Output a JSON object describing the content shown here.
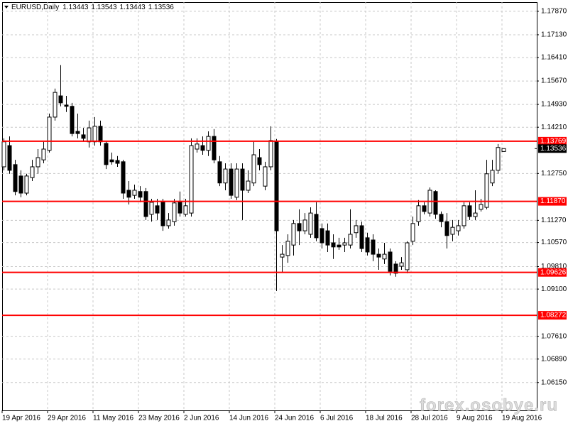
{
  "chart_data": {
    "type": "candlestick",
    "title": "EURUSD,Daily",
    "watermark": "forex.osobye.ru",
    "grid": true,
    "bull_color": "#ffffff",
    "bear_color": "#000000",
    "outline_color": "#000000",
    "categories": [
      "19 Apr 2016",
      null,
      null,
      null,
      null,
      null,
      null,
      null,
      "29 Apr 2016",
      null,
      null,
      null,
      null,
      null,
      null,
      null,
      "11 May 2016",
      null,
      null,
      null,
      null,
      null,
      null,
      null,
      "23 May 2016",
      null,
      null,
      null,
      null,
      null,
      null,
      null,
      "2 Jun 2016",
      null,
      null,
      null,
      null,
      null,
      null,
      null,
      "14 Jun 2016",
      null,
      null,
      null,
      null,
      null,
      null,
      null,
      "24 Jun 2016",
      null,
      null,
      null,
      null,
      null,
      null,
      null,
      "6 Jul 2016",
      null,
      null,
      null,
      null,
      null,
      null,
      null,
      "18 Jul 2016",
      null,
      null,
      null,
      null,
      null,
      null,
      null,
      "28 Jul 2016",
      null,
      null,
      null,
      null,
      null,
      null,
      null,
      "9 Aug 2016",
      null,
      null,
      null,
      null,
      null,
      null,
      null,
      "19 Aug 2016"
    ],
    "open": [
      1.1296,
      1.1363,
      1.1303,
      1.1267,
      1.1213,
      1.1262,
      1.1296,
      1.1318,
      1.1348,
      1.1453,
      1.152,
      1.1491,
      1.1487,
      1.1408,
      1.1397,
      1.1375,
      1.1375,
      1.1424,
      1.137,
      1.1318,
      1.1316,
      1.1312,
      1.1222,
      1.1206,
      1.1218,
      1.1218,
      1.1146,
      1.1173,
      1.1184,
      1.111,
      1.1123,
      1.1184,
      1.1146,
      1.115,
      1.1352,
      1.1363,
      1.1348,
      1.1392,
      1.1312,
      1.1245,
      1.1289,
      1.12,
      1.1289,
      1.1222,
      1.1245,
      1.1325,
      1.1235,
      1.1296,
      1.1375,
      1.1011,
      1.1016,
      1.1049,
      1.1117,
      1.1094,
      1.1083,
      1.1146,
      1.1101,
      1.1094,
      1.1056,
      1.1049,
      1.1049,
      1.1049,
      1.1088,
      1.111,
      1.1072,
      1.1065,
      1.102,
      1.1005,
      1.1027,
      1.0989,
      1.0982,
      1.0971,
      1.1061,
      1.1123,
      1.1173,
      1.115,
      1.1218,
      1.1146,
      1.1123,
      1.1083,
      1.1094,
      1.111,
      1.1173,
      1.1139,
      1.1162,
      1.1168,
      1.1245,
      1.1285,
      1.13443
    ],
    "high": [
      1.1386,
      1.1392,
      1.1318,
      1.1285,
      1.1274,
      1.1318,
      1.1352,
      1.1375,
      1.1464,
      1.1543,
      1.1617,
      1.152,
      1.1498,
      1.1464,
      1.1419,
      1.1442,
      1.1453,
      1.1442,
      1.1379,
      1.1341,
      1.133,
      1.1318,
      1.1251,
      1.124,
      1.1235,
      1.1229,
      1.1195,
      1.1195,
      1.1195,
      1.115,
      1.1195,
      1.1218,
      1.1195,
      1.1386,
      1.1386,
      1.1392,
      1.1408,
      1.1415,
      1.133,
      1.1307,
      1.1307,
      1.1307,
      1.1307,
      1.1285,
      1.1375,
      1.1352,
      1.1312,
      1.1424,
      1.1384,
      1.1049,
      1.1083,
      1.1128,
      1.1162,
      1.115,
      1.1168,
      1.1184,
      1.1117,
      1.1117,
      1.1083,
      1.1072,
      1.1072,
      1.1162,
      1.1128,
      1.1123,
      1.1088,
      1.1083,
      1.1038,
      1.1056,
      1.1038,
      1.0998,
      1.1011,
      1.1061,
      1.1139,
      1.1191,
      1.1184,
      1.1231,
      1.1222,
      1.1155,
      1.115,
      1.1128,
      1.1128,
      1.1184,
      1.1184,
      1.1222,
      1.1195,
      1.1318,
      1.1318,
      1.1368,
      1.13543
    ],
    "low": [
      1.1285,
      1.1274,
      1.1206,
      1.12,
      1.1206,
      1.1251,
      1.1274,
      1.1307,
      1.1341,
      1.1442,
      1.1487,
      1.1469,
      1.1392,
      1.1386,
      1.1375,
      1.1357,
      1.1363,
      1.1363,
      1.1289,
      1.1303,
      1.1296,
      1.1195,
      1.1177,
      1.1195,
      1.1184,
      1.1128,
      1.1123,
      1.1128,
      1.1094,
      1.1101,
      1.111,
      1.1139,
      1.1139,
      1.1139,
      1.1341,
      1.1334,
      1.133,
      1.1307,
      1.1235,
      1.1222,
      1.1195,
      1.1191,
      1.1128,
      1.1213,
      1.1235,
      1.1285,
      1.1222,
      1.1285,
      1.0904,
      1.0964,
      1.0993,
      1.1016,
      1.1049,
      1.1083,
      1.1072,
      1.1061,
      1.1038,
      1.1027,
      1.1005,
      1.1034,
      1.1027,
      1.1038,
      1.1072,
      1.1027,
      1.1016,
      1.0998,
      1.0971,
      1.0989,
      1.0953,
      1.0949,
      1.0971,
      1.096,
      1.1049,
      1.111,
      1.1146,
      1.1139,
      1.1132,
      1.1105,
      1.1038,
      1.1061,
      1.1079,
      1.1101,
      1.1128,
      1.1128,
      1.1155,
      1.1162,
      1.1235,
      1.1274,
      1.13443
    ],
    "close": [
      1.1375,
      1.1285,
      1.1218,
      1.1213,
      1.1267,
      1.1296,
      1.1325,
      1.1352,
      1.1453,
      1.1531,
      1.1498,
      1.1487,
      1.1401,
      1.1401,
      1.1386,
      1.1419,
      1.1424,
      1.1375,
      1.1303,
      1.1312,
      1.1307,
      1.1213,
      1.12,
      1.1222,
      1.12,
      1.1139,
      1.1184,
      1.115,
      1.111,
      1.1128,
      1.1182,
      1.115,
      1.1173,
      1.1363,
      1.1368,
      1.1348,
      1.1392,
      1.1318,
      1.1245,
      1.1289,
      1.1206,
      1.1289,
      1.1222,
      1.1251,
      1.1334,
      1.1303,
      1.1296,
      1.1379,
      1.1094,
      1.102,
      1.1061,
      1.1117,
      1.1094,
      1.1128,
      1.115,
      1.1072,
      1.1056,
      1.1049,
      1.1043,
      1.1043,
      1.1056,
      1.1083,
      1.111,
      1.1038,
      1.1027,
      1.102,
      1.1011,
      1.102,
      1.0966,
      1.096,
      1.0993,
      1.1056,
      1.1117,
      1.1173,
      1.1155,
      1.1222,
      1.1146,
      1.1123,
      1.1079,
      1.1105,
      1.111,
      1.1173,
      1.1139,
      1.115,
      1.1177,
      1.1274,
      1.1285,
      1.1357,
      1.13536
    ],
    "ylim": [
      1.0527,
      1.1816
    ],
    "yticks": [
      {
        "value": 1.1787,
        "label": "1.17870"
      },
      {
        "value": 1.1713,
        "label": "1.17130"
      },
      {
        "value": 1.1641,
        "label": "1.16410"
      },
      {
        "value": 1.1567,
        "label": "1.15670"
      },
      {
        "value": 1.1493,
        "label": "1.14930"
      },
      {
        "value": 1.1421,
        "label": "1.14210"
      },
      {
        "value": 1.1275,
        "label": "1.12750"
      },
      {
        "value": 1.1127,
        "label": "1.11270"
      },
      {
        "value": 1.1057,
        "label": "1.10570"
      },
      {
        "value": 1.0981,
        "label": "1.09810"
      },
      {
        "value": 1.091,
        "label": "1.09100"
      },
      {
        "value": 1.0761,
        "label": "1.07610"
      },
      {
        "value": 1.0689,
        "label": "1.06890"
      },
      {
        "value": 1.0615,
        "label": "1.06150"
      }
    ],
    "levels": [
      {
        "value": 1.13769,
        "label": "1.13769"
      },
      {
        "value": 1.1187,
        "label": "1.11870"
      },
      {
        "value": 1.09626,
        "label": "1.09626"
      },
      {
        "value": 1.08272,
        "label": "1.08272"
      }
    ],
    "level_color": "#ff0000"
  }
}
